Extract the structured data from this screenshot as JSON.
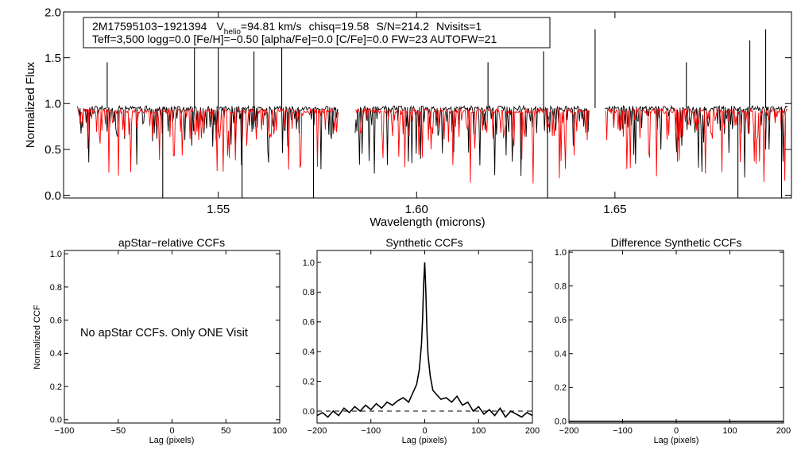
{
  "chart_data": [
    {
      "id": "spectrum",
      "type": "line",
      "title": "",
      "xlabel": "Wavelength (microns)",
      "ylabel": "Normalized Flux",
      "xlim": [
        1.511,
        1.6945
      ],
      "ylim": [
        -0.03,
        2.0
      ],
      "xticks": [
        1.55,
        1.6,
        1.65
      ],
      "xtick_labels": [
        "1.55",
        "1.60",
        "1.65"
      ],
      "yticks": [
        0.0,
        0.5,
        1.0,
        1.5,
        2.0
      ],
      "ytick_labels": [
        "0.0",
        "0.5",
        "1.0",
        "1.5",
        "2.0"
      ],
      "detector_ranges": [
        [
          1.5145,
          1.5805
        ],
        [
          1.5845,
          1.6435
        ],
        [
          1.6475,
          1.6935
        ]
      ],
      "series": [
        {
          "name": "observed spectrum",
          "color": "#000000",
          "continuum": 0.95
        },
        {
          "name": "synthetic fit",
          "color": "#ff0000",
          "continuum": 0.92
        }
      ],
      "spikes": [
        1.522,
        1.536,
        1.544,
        1.55,
        1.556,
        1.559,
        1.566,
        1.574,
        1.618,
        1.632,
        1.633,
        1.645,
        1.668,
        1.681,
        1.684,
        1.688,
        1.692
      ],
      "info": {
        "object": "2M17595103−1921394",
        "v_label": "V",
        "v_sub": "helio",
        "v_value": "=94.81 km/s",
        "chisq": "chisq=19.58",
        "sn": "S/N=214.2",
        "nvisits": "Nvisits=1",
        "params": "Teff=3,500 logg=0.0 [Fe/H]=−0.50 [alpha/Fe]=0.0 [C/Fe]=0.0 FW=23 AUTOFW=21"
      }
    },
    {
      "id": "apstar-ccf",
      "type": "line",
      "title": "apStar−relative CCFs",
      "xlabel": "Lag (pixels)",
      "ylabel": "Normalized CCF",
      "xlim": [
        -100,
        100
      ],
      "ylim": [
        -0.02,
        1.02
      ],
      "xticks": [
        -100,
        -50,
        0,
        50,
        100
      ],
      "xtick_labels": [
        "−100",
        "−50",
        "0",
        "50",
        "100"
      ],
      "yticks": [
        0.0,
        0.2,
        0.4,
        0.6,
        0.8,
        1.0
      ],
      "ytick_labels": [
        "0.0",
        "0.2",
        "0.4",
        "0.6",
        "0.8",
        "1.0"
      ],
      "message": "No apStar CCFs.  Only ONE Visit",
      "series": []
    },
    {
      "id": "synthetic-ccf",
      "type": "line",
      "title": "Synthetic CCFs",
      "xlabel": "Lag (pixels)",
      "ylabel": "",
      "xlim": [
        -200,
        200
      ],
      "ylim": [
        -0.08,
        1.08
      ],
      "xticks": [
        -200,
        -100,
        0,
        100,
        200
      ],
      "xtick_labels": [
        "−200",
        "−100",
        "0",
        "100",
        "200"
      ],
      "yticks": [
        0.0,
        0.2,
        0.4,
        0.6,
        0.8,
        1.0
      ],
      "ytick_labels": [
        "0.0",
        "0.2",
        "0.4",
        "0.6",
        "0.8",
        "1.0"
      ],
      "baseline": 0.0,
      "series": [
        {
          "name": "synthetic CCF",
          "x": [
            -200,
            -190,
            -180,
            -170,
            -160,
            -150,
            -140,
            -130,
            -120,
            -110,
            -100,
            -90,
            -80,
            -70,
            -60,
            -50,
            -40,
            -30,
            -20,
            -15,
            -10,
            -6,
            -4,
            -2,
            0,
            2,
            4,
            6,
            10,
            15,
            20,
            30,
            40,
            50,
            60,
            70,
            80,
            90,
            100,
            110,
            120,
            130,
            140,
            150,
            160,
            170,
            180,
            190,
            200
          ],
          "y": [
            -0.03,
            -0.01,
            -0.04,
            0.0,
            -0.03,
            0.02,
            -0.01,
            0.03,
            0.0,
            0.04,
            0.01,
            0.05,
            0.02,
            0.06,
            0.04,
            0.07,
            0.09,
            0.06,
            0.14,
            0.18,
            0.28,
            0.45,
            0.62,
            0.85,
            1.0,
            0.8,
            0.55,
            0.38,
            0.24,
            0.14,
            0.12,
            0.08,
            0.09,
            0.06,
            0.1,
            0.04,
            0.06,
            0.0,
            0.03,
            -0.02,
            0.01,
            -0.03,
            0.02,
            -0.04,
            0.0,
            -0.02,
            -0.04,
            -0.01,
            -0.03
          ]
        }
      ]
    },
    {
      "id": "difference-ccf",
      "type": "line",
      "title": "Difference Synthetic CCFs",
      "xlabel": "Lag (pixels)",
      "ylabel": "",
      "xlim": [
        -200,
        200
      ],
      "ylim": [
        -0.01,
        1.01
      ],
      "xticks": [
        -200,
        -100,
        0,
        100,
        200
      ],
      "xtick_labels": [
        "−200",
        "−100",
        "0",
        "100",
        "200"
      ],
      "yticks": [
        0.0,
        0.2,
        0.4,
        0.6,
        0.8,
        1.0
      ],
      "ytick_labels": [
        "0.0",
        "0.2",
        "0.4",
        "0.6",
        "0.8",
        "1.0"
      ],
      "series": [
        {
          "name": "difference CCF",
          "x": [
            -200,
            200
          ],
          "y": [
            0.0,
            0.0
          ]
        }
      ]
    }
  ]
}
